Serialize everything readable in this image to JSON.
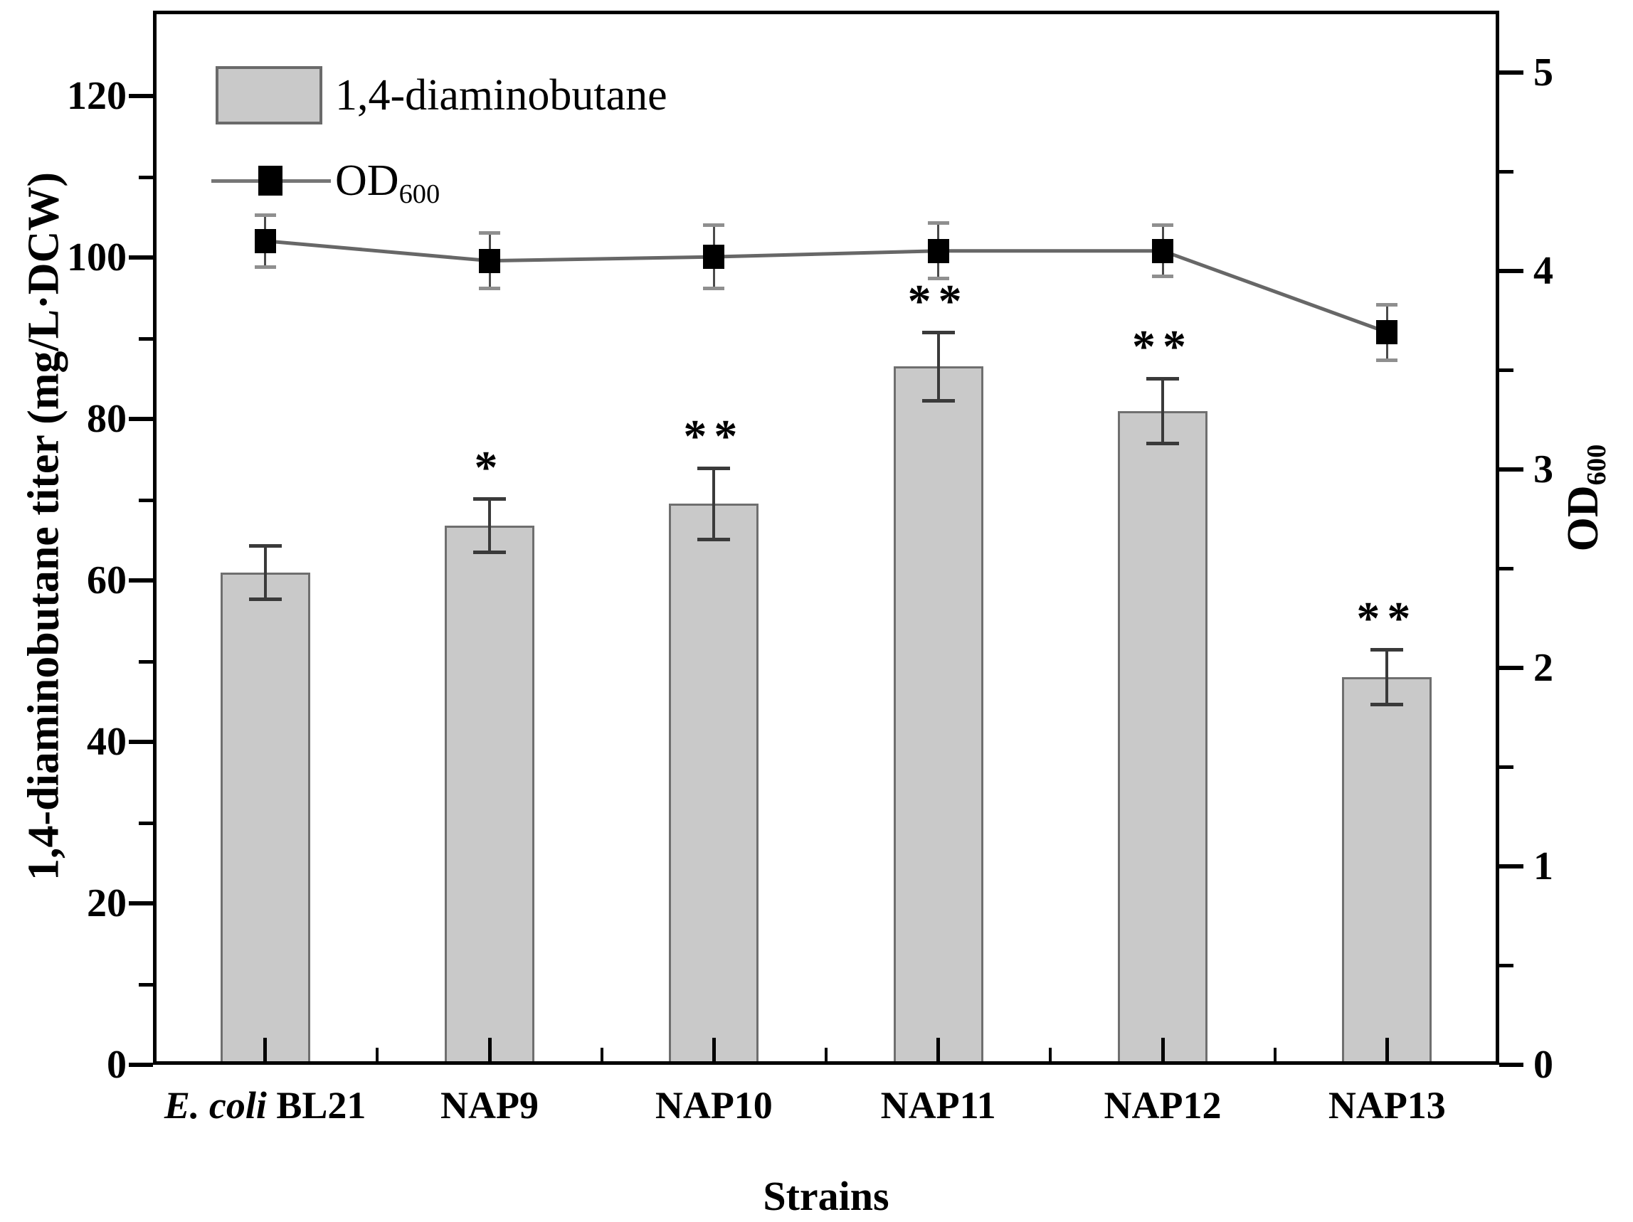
{
  "figure": {
    "background": "#ffffff"
  },
  "chart_data": {
    "type": "bar",
    "title": "",
    "categories": [
      "E. coli BL21",
      "NAP9",
      "NAP10",
      "NAP11",
      "NAP12",
      "NAP13"
    ],
    "categories_rich": [
      {
        "italic": "E. coli",
        "text": " BL21"
      },
      {
        "italic": "",
        "text": "NAP9"
      },
      {
        "italic": "",
        "text": "NAP10"
      },
      {
        "italic": "",
        "text": "NAP11"
      },
      {
        "italic": "",
        "text": "NAP12"
      },
      {
        "italic": "",
        "text": "NAP13"
      }
    ],
    "bar_series": {
      "name": "1,4-diaminobutane",
      "axis": "left",
      "values": [
        61.0,
        66.8,
        69.5,
        86.5,
        81.0,
        48.0
      ],
      "errors": [
        3.3,
        3.3,
        4.4,
        4.2,
        4.0,
        3.4
      ],
      "significance": [
        "",
        "*",
        "**",
        "**",
        "**",
        "**"
      ]
    },
    "line_series": {
      "name": "OD600",
      "axis": "right",
      "values": [
        4.15,
        4.05,
        4.07,
        4.1,
        4.1,
        3.69
      ],
      "errors": [
        0.13,
        0.14,
        0.16,
        0.14,
        0.13,
        0.14
      ]
    },
    "left_axis": {
      "label": "1,4-diaminobutane titer (mg/L·DCW)",
      "ticks": [
        0,
        20,
        40,
        60,
        80,
        100,
        120
      ],
      "minor_ticks": [
        10,
        30,
        50,
        70,
        90,
        110
      ],
      "min": 0,
      "max": 130.6
    },
    "right_axis": {
      "label": "OD",
      "label_sub": "600",
      "ticks": [
        0,
        1,
        2,
        3,
        4,
        5
      ],
      "minor_ticks": [
        0.5,
        1.5,
        2.5,
        3.5,
        4.5
      ],
      "min": 0,
      "max": 5.31
    },
    "x_axis": {
      "label": "Strains"
    },
    "legend": {
      "position": "top-left-inside",
      "bar_label": "1,4-diaminobutane",
      "od_label": "OD",
      "od_sub": "600"
    },
    "grid": "off",
    "colors": {
      "bar_fill": "#c9c9c9",
      "bar_border": "#6f6f6f",
      "bar_error": "#3a3a3a",
      "line": "#676767",
      "marker": "#000000",
      "od_error_line": "#4a4a4a",
      "od_error_cap": "#8f8f8f",
      "text": "#000000",
      "frame": "#000000"
    }
  }
}
